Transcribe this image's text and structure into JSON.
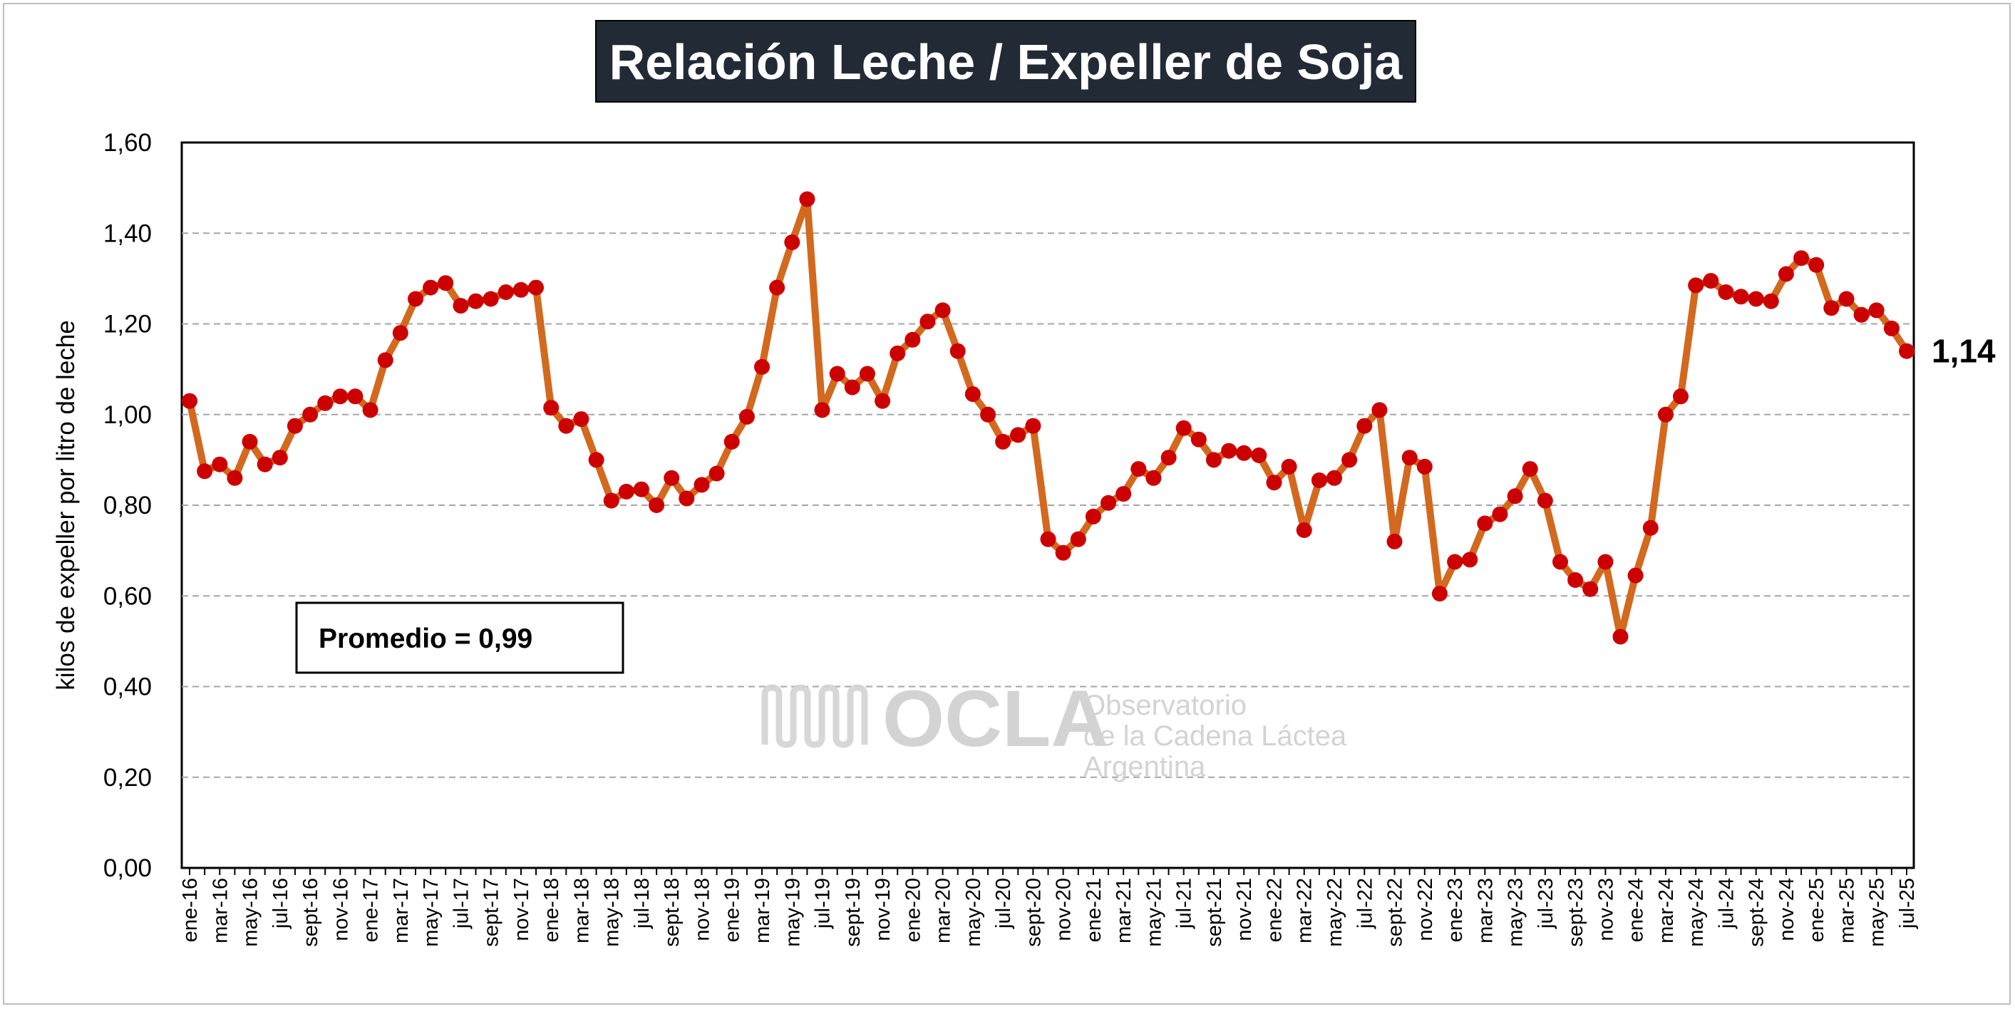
{
  "chart_data": {
    "type": "line",
    "title": "Relación Leche / Expeller de Soja",
    "ylabel": "kilos de expeller por litro de leche",
    "xlabel": "",
    "ylim": [
      0,
      1.6
    ],
    "y_ticks": [
      "0,00",
      "0,20",
      "0,40",
      "0,60",
      "0,80",
      "1,00",
      "1,20",
      "1,40",
      "1,60"
    ],
    "grid": "horizontal-dashed",
    "legend": "none",
    "average_label": "Promedio = 0,99",
    "last_value_label": "1,14",
    "line_color": "#D2691E",
    "marker_color": "#CC0000",
    "x_tick_labels": [
      "ene-16",
      "mar-16",
      "may-16",
      "jul-16",
      "sept-16",
      "nov-16",
      "ene-17",
      "mar-17",
      "may-17",
      "jul-17",
      "sept-17",
      "nov-17",
      "ene-18",
      "mar-18",
      "may-18",
      "jul-18",
      "sept-18",
      "nov-18",
      "ene-19",
      "mar-19",
      "may-19",
      "jul-19",
      "sept-19",
      "nov-19",
      "ene-20",
      "mar-20",
      "may-20",
      "jul-20",
      "sept-20",
      "nov-20",
      "ene-21",
      "mar-21",
      "may-21",
      "jul-21",
      "sept-21",
      "nov-21",
      "ene-22",
      "mar-22",
      "may-22",
      "jul-22",
      "sept-22",
      "nov-22",
      "ene-23",
      "mar-23",
      "may-23",
      "jul-23",
      "sept-23",
      "nov-23",
      "ene-24",
      "mar-24",
      "may-24",
      "jul-24",
      "sept-24",
      "nov-24",
      "ene-25",
      "mar-25",
      "may-25",
      "jul-25"
    ],
    "series": [
      {
        "values": [
          1.03,
          0.875,
          0.89,
          0.86,
          0.94,
          0.89,
          0.905,
          0.975,
          1.0,
          1.025,
          1.04,
          1.04,
          1.01,
          1.12,
          1.18,
          1.255,
          1.28,
          1.29,
          1.24,
          1.25,
          1.255,
          1.27,
          1.275,
          1.28,
          1.015,
          0.975,
          0.99,
          0.9,
          0.81,
          0.83,
          0.835,
          0.8,
          0.86,
          0.815,
          0.845,
          0.87,
          0.94,
          0.995,
          1.105,
          1.28,
          1.38,
          1.475,
          1.01,
          1.09,
          1.06,
          1.09,
          1.03,
          1.135,
          1.165,
          1.205,
          1.23,
          1.14,
          1.045,
          1.0,
          0.94,
          0.955,
          0.975,
          0.725,
          0.695,
          0.725,
          0.775,
          0.805,
          0.825,
          0.88,
          0.86,
          0.905,
          0.97,
          0.945,
          0.9,
          0.92,
          0.915,
          0.91,
          0.85,
          0.885,
          0.745,
          0.855,
          0.86,
          0.9,
          0.975,
          1.01,
          0.72,
          0.905,
          0.885,
          0.605,
          0.675,
          0.68,
          0.76,
          0.78,
          0.82,
          0.88,
          0.81,
          0.675,
          0.635,
          0.615,
          0.675,
          0.51,
          0.645,
          0.75,
          1.0,
          1.04,
          1.285,
          1.295,
          1.27,
          1.26,
          1.255,
          1.25,
          1.31,
          1.345,
          1.33,
          1.235,
          1.255,
          1.22,
          1.23,
          1.19,
          1.14
        ]
      }
    ]
  },
  "watermark": {
    "name": "OCLA",
    "line1": "Observatorio",
    "line2": "de la Cadena Láctea",
    "line3": "Argentina"
  }
}
